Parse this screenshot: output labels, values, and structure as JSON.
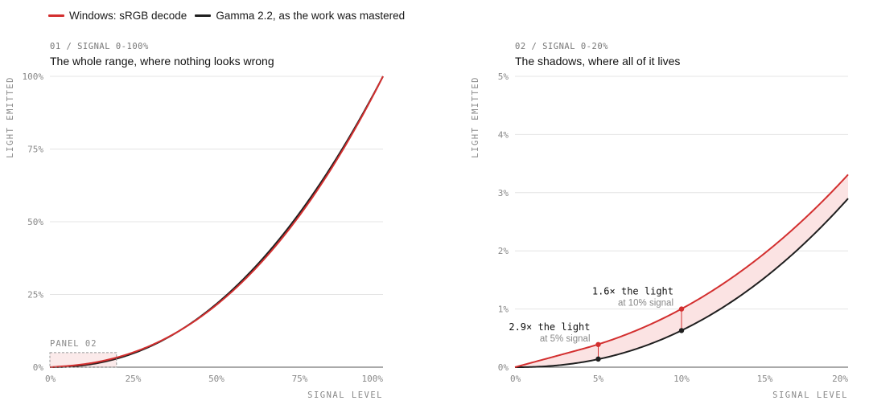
{
  "legend": {
    "srgb_label": "Windows: sRGB decode",
    "gamma_label": "Gamma 2.2, as the work was mastered"
  },
  "colors": {
    "srgb": "#d32f2f",
    "gamma": "#1f1f1f",
    "fill": "#fbe3e3",
    "grid": "#e4e4e4",
    "muted": "#888888"
  },
  "panels": [
    {
      "label": "01 / SIGNAL 0-100%",
      "title": "The whole range, where nothing looks wrong",
      "ylabel": "LIGHT EMITTED",
      "xlabel": "SIGNAL LEVEL",
      "xticks": [
        "0%",
        "25%",
        "50%",
        "75%",
        "100%"
      ],
      "yticks": [
        "0%",
        "25%",
        "50%",
        "75%",
        "100%"
      ],
      "inset_label": "PANEL 02"
    },
    {
      "label": "02 / SIGNAL 0-20%",
      "title": "The shadows, where all of it lives",
      "ylabel": "LIGHT EMITTED",
      "xlabel": "SIGNAL LEVEL",
      "xticks": [
        "0%",
        "5%",
        "10%",
        "15%",
        "20%"
      ],
      "yticks": [
        "0%",
        "1%",
        "2%",
        "3%",
        "4%",
        "5%"
      ],
      "annotations": [
        {
          "main": "1.6× the light",
          "sub": "at 10% signal"
        },
        {
          "main": "2.9× the light",
          "sub": "at 5% signal"
        }
      ]
    }
  ],
  "chart_data": [
    {
      "type": "line",
      "xlim": [
        0,
        1
      ],
      "ylim": [
        0,
        1
      ],
      "series": [
        {
          "name": "Windows: sRGB decode",
          "function": "sRGB EOTF",
          "x": [
            0,
            0.05,
            0.1,
            0.2,
            0.25,
            0.5,
            0.75,
            1.0
          ],
          "y": [
            0,
            0.0039,
            0.01,
            0.0331,
            0.0508,
            0.214,
            0.5225,
            1.0
          ]
        },
        {
          "name": "Gamma 2.2, as the work was mastered",
          "function": "x^2.2",
          "x": [
            0,
            0.05,
            0.1,
            0.2,
            0.25,
            0.5,
            0.75,
            1.0
          ],
          "y": [
            0,
            0.0014,
            0.0063,
            0.029,
            0.0474,
            0.2176,
            0.531,
            1.0
          ]
        }
      ],
      "highlight_region": {
        "x": [
          0,
          0.2
        ],
        "y": [
          0,
          0.05
        ]
      }
    },
    {
      "type": "area",
      "xlim": [
        0,
        0.2
      ],
      "ylim": [
        0,
        0.05
      ],
      "series": [
        {
          "name": "Windows: sRGB decode",
          "function": "sRGB EOTF",
          "x": [
            0,
            0.05,
            0.1,
            0.15,
            0.2
          ],
          "y": [
            0,
            0.0039,
            0.01,
            0.0194,
            0.0331
          ]
        },
        {
          "name": "Gamma 2.2, as the work was mastered",
          "function": "x^2.2",
          "x": [
            0,
            0.05,
            0.1,
            0.15,
            0.2
          ],
          "y": [
            0,
            0.0014,
            0.0063,
            0.0155,
            0.029
          ]
        }
      ],
      "markers": [
        {
          "x": 0.1,
          "srgb": 0.01,
          "gamma": 0.0063,
          "ratio": "1.6×"
        },
        {
          "x": 0.05,
          "srgb": 0.0039,
          "gamma": 0.0014,
          "ratio": "2.9×"
        }
      ]
    }
  ]
}
